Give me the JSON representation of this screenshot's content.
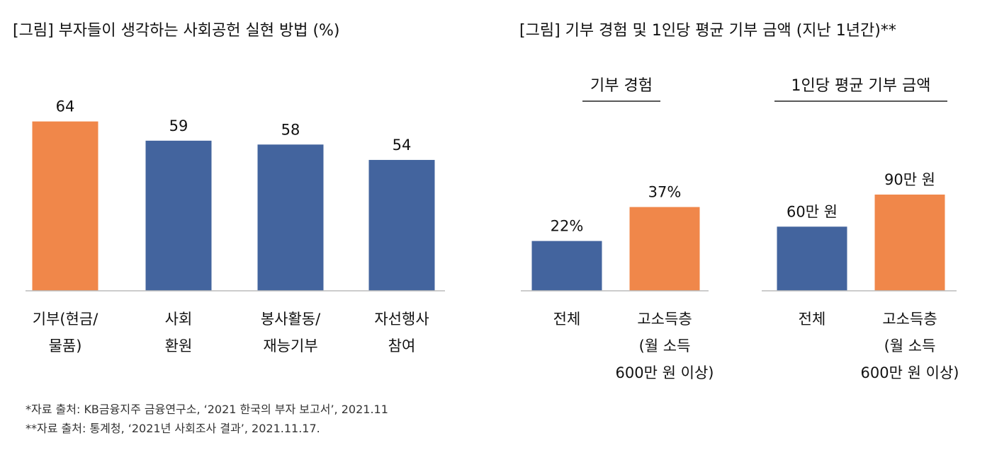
{
  "colors": {
    "orange": "#F0874A",
    "blue": "#43649E"
  },
  "chart_data": [
    {
      "type": "bar",
      "title": "[그림] 부자들이 생각하는 사회공헌 실현 방법 (%)",
      "categories": [
        [
          "기부(현금/",
          "물품)"
        ],
        [
          "사회",
          "환원"
        ],
        [
          "봉사활동/",
          "재능기부"
        ],
        [
          "자선행사",
          "참여"
        ]
      ],
      "values": [
        64,
        59,
        58,
        54
      ],
      "value_labels": [
        "64",
        "59",
        "58",
        "54"
      ],
      "highlight": [
        true,
        false,
        false,
        false
      ],
      "ylim": [
        20,
        70
      ]
    },
    {
      "type": "bar",
      "title": "[그림] 기부 경험 및 1인당 평균 기부 금액 (지난 1년간)**",
      "subtitle": "기부 경험",
      "categories": [
        [
          "전체"
        ],
        [
          "고소득층",
          "(월 소득",
          "600만 원 이상)"
        ]
      ],
      "values": [
        22,
        37
      ],
      "value_labels": [
        "22%",
        "37%"
      ],
      "highlight": [
        false,
        true
      ],
      "ylim": [
        0,
        85
      ]
    },
    {
      "type": "bar",
      "subtitle": "1인당 평균 기부 금액",
      "categories": [
        [
          "전체"
        ],
        [
          "고소득층",
          "(월 소득",
          "600만 원 이상)"
        ]
      ],
      "values": [
        60,
        90
      ],
      "value_labels": [
        "60만 원",
        "90만 원"
      ],
      "highlight": [
        false,
        true
      ],
      "ylim": [
        0,
        180
      ]
    }
  ],
  "footnotes": [
    "*자료 출처: KB금융지주 금융연구소, ‘2021 한국의 부자 보고서’, 2021.11",
    "**자료 출처: 통계청, ‘2021년 사회조사 결과’, 2021.11.17."
  ]
}
